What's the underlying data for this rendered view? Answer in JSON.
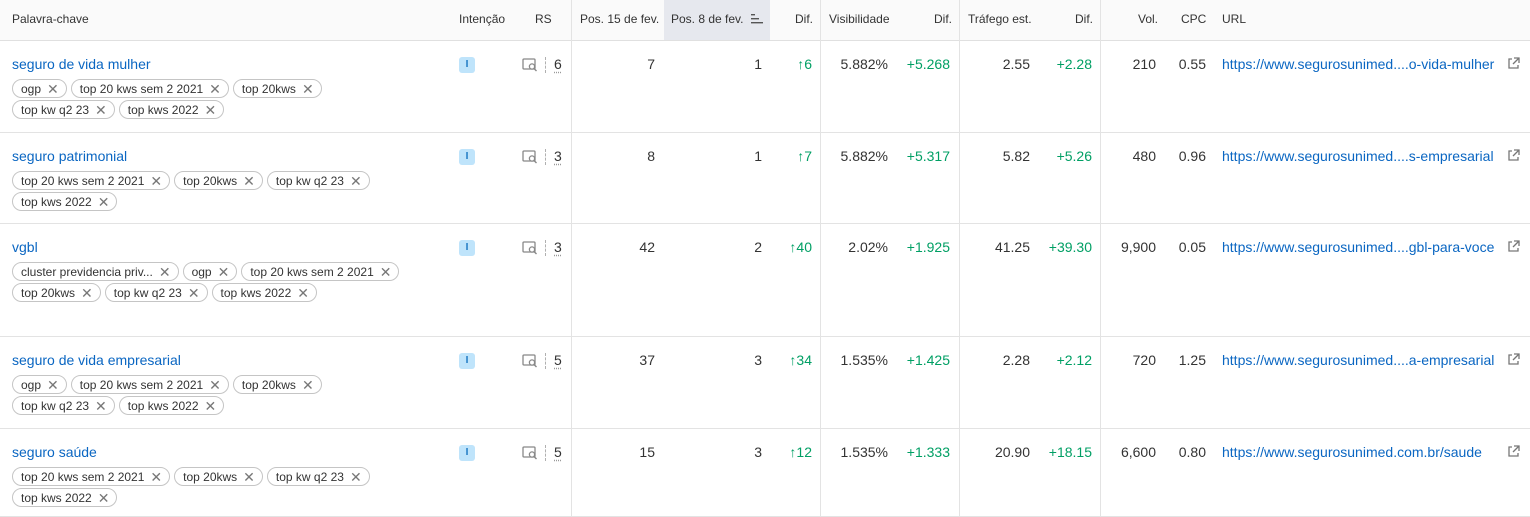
{
  "header": {
    "keyword": "Palavra-chave",
    "intent": "Intenção",
    "rs": "RS",
    "pos1": "Pos. 15 de fev.",
    "pos2": "Pos. 8 de fev.",
    "diff1": "Dif.",
    "visibility": "Visibilidade",
    "diff2": "Dif.",
    "traffic": "Tráfego est.",
    "diff3": "Dif.",
    "vol": "Vol.",
    "cpc": "CPC",
    "url": "URL"
  },
  "rows": [
    {
      "keyword": "seguro de vida mulher",
      "intent": "I",
      "rs": "6",
      "pos1": "7",
      "pos2": "1",
      "diff1": "↑6",
      "visibility": "5.882%",
      "diff2": "+5.268",
      "traffic": "2.55",
      "diff3": "+2.28",
      "vol": "210",
      "cpc": "0.55",
      "url": "https://www.segurosunimed....o-vida-mulher",
      "tags": [
        "ogp",
        "top 20 kws sem 2 2021",
        "top 20kws",
        "top kw q2 23",
        "top kws 2022"
      ]
    },
    {
      "keyword": "seguro patrimonial",
      "intent": "I",
      "rs": "3",
      "pos1": "8",
      "pos2": "1",
      "diff1": "↑7",
      "visibility": "5.882%",
      "diff2": "+5.317",
      "traffic": "5.82",
      "diff3": "+5.26",
      "vol": "480",
      "cpc": "0.96",
      "url": "https://www.segurosunimed....s-empresarial",
      "tags": [
        "top 20 kws sem 2 2021",
        "top 20kws",
        "top kw q2 23",
        "top kws 2022"
      ]
    },
    {
      "keyword": "vgbl",
      "intent": "I",
      "rs": "3",
      "pos1": "42",
      "pos2": "2",
      "diff1": "↑40",
      "visibility": "2.02%",
      "diff2": "+1.925",
      "traffic": "41.25",
      "diff3": "+39.30",
      "vol": "9,900",
      "cpc": "0.05",
      "url": "https://www.segurosunimed....gbl-para-voce",
      "tags": [
        "cluster previdencia priv...",
        "ogp",
        "top 20 kws sem 2 2021",
        "top 20kws",
        "top kw q2 23",
        "top kws 2022"
      ]
    },
    {
      "keyword": "seguro de vida empresarial",
      "intent": "I",
      "rs": "5",
      "pos1": "37",
      "pos2": "3",
      "diff1": "↑34",
      "visibility": "1.535%",
      "diff2": "+1.425",
      "traffic": "2.28",
      "diff3": "+2.12",
      "vol": "720",
      "cpc": "1.25",
      "url": "https://www.segurosunimed....a-empresarial",
      "tags": [
        "ogp",
        "top 20 kws sem 2 2021",
        "top 20kws",
        "top kw q2 23",
        "top kws 2022"
      ]
    },
    {
      "keyword": "seguro saúde",
      "intent": "I",
      "rs": "5",
      "pos1": "15",
      "pos2": "3",
      "diff1": "↑12",
      "visibility": "1.535%",
      "diff2": "+1.333",
      "traffic": "20.90",
      "diff3": "+18.15",
      "vol": "6,600",
      "cpc": "0.80",
      "url": "https://www.segurosunimed.com.br/saude",
      "tags": [
        "top 20 kws sem 2 2021",
        "top 20kws",
        "top kw q2 23",
        "top kws 2022"
      ]
    }
  ],
  "icons": {
    "serp": "serp-features-icon",
    "tag_remove": "close-icon",
    "external": "external-link-icon",
    "sort": "sort-descending-icon"
  },
  "colors": {
    "link": "#0a66c2",
    "positive": "#009f64",
    "intent_bg": "#bfe4fb"
  }
}
